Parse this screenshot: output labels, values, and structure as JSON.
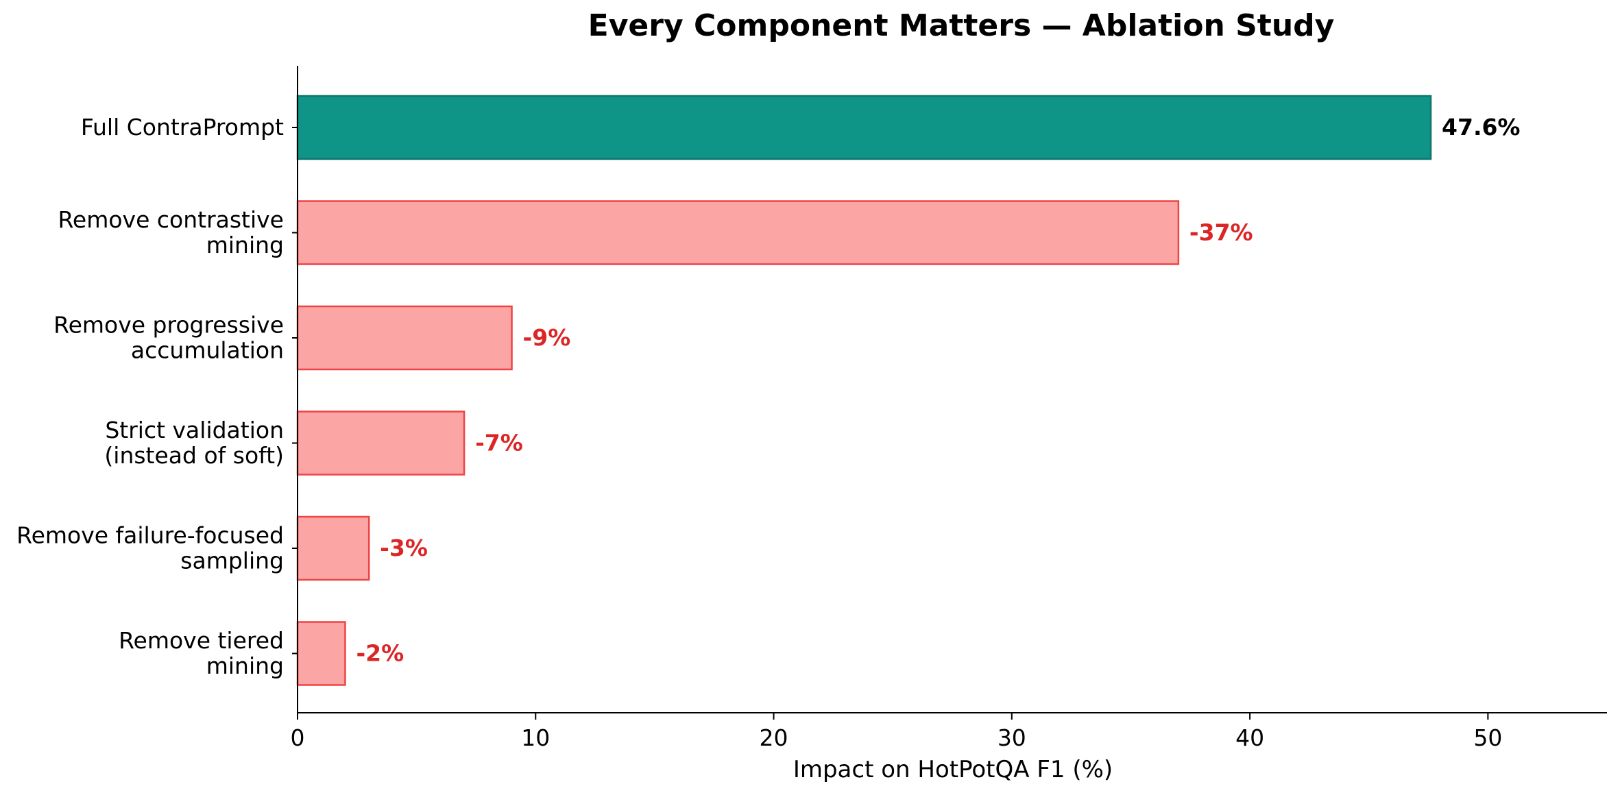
{
  "chart_data": {
    "type": "bar",
    "orientation": "horizontal",
    "title": "Every Component Matters — Ablation Study",
    "xlabel": "Impact on HotPotQA F1 (%)",
    "ylabel": "",
    "xlim": [
      0,
      55
    ],
    "xticks": [
      0,
      10,
      20,
      30,
      40,
      50
    ],
    "grid": false,
    "categories": [
      [
        "Full ContraPrompt"
      ],
      [
        "Remove contrastive",
        "mining"
      ],
      [
        "Remove progressive",
        "accumulation"
      ],
      [
        "Strict validation",
        "(instead of soft)"
      ],
      [
        "Remove failure-focused",
        "sampling"
      ],
      [
        "Remove tiered",
        "mining"
      ]
    ],
    "values": [
      47.6,
      37,
      9,
      7,
      3,
      2
    ],
    "value_labels": [
      "47.6%",
      "-37%",
      "-9%",
      "-7%",
      "-3%",
      "-2%"
    ],
    "bar_fills": [
      "#0f9488",
      "#fca5a5",
      "#fca5a5",
      "#fca5a5",
      "#fca5a5",
      "#fca5a5"
    ],
    "bar_edges": [
      "#0f766e",
      "#ef4444",
      "#ef4444",
      "#ef4444",
      "#ef4444",
      "#ef4444"
    ],
    "label_colors": [
      "#000000",
      "#dc2626",
      "#dc2626",
      "#dc2626",
      "#dc2626",
      "#dc2626"
    ]
  }
}
